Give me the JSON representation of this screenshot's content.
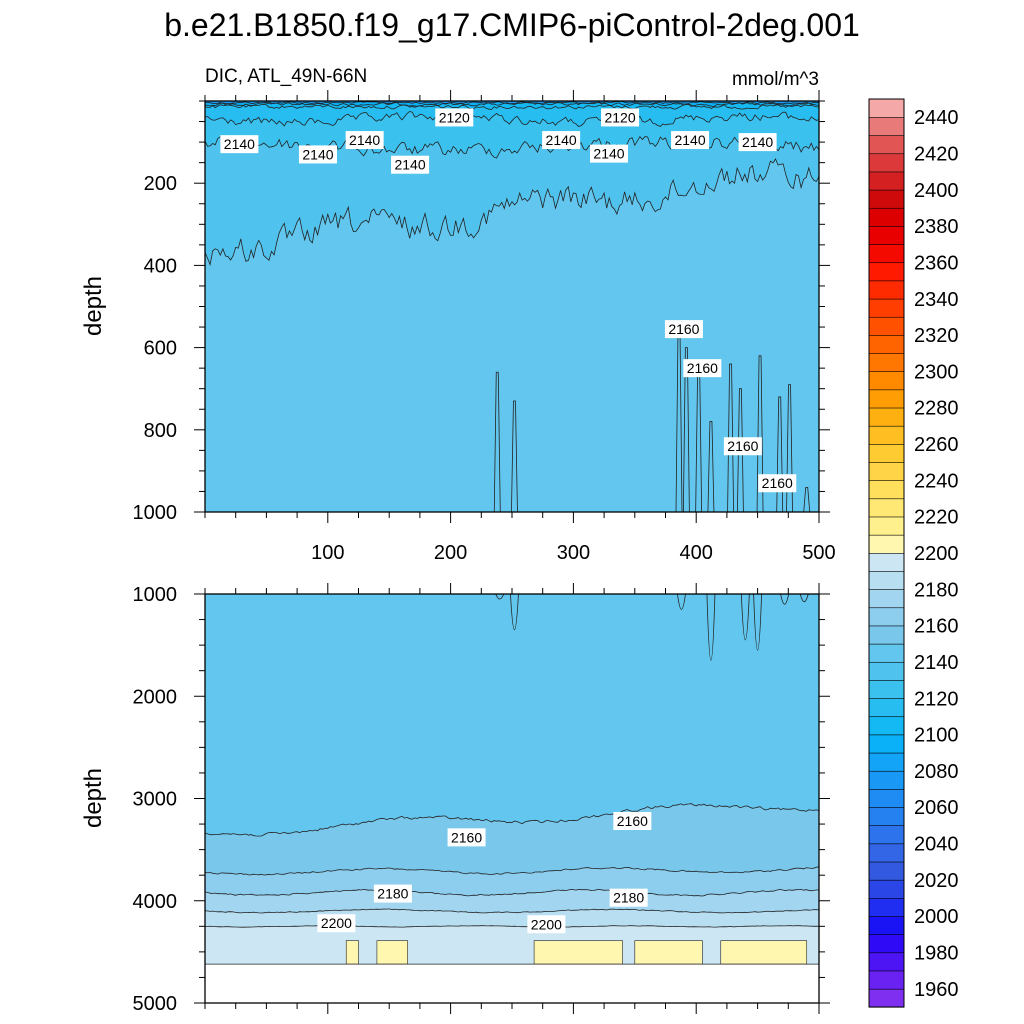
{
  "page": {
    "title": "b.e21.B1850.f19_g17.CMIP6-piControl-2deg.001"
  },
  "chart_data": [
    {
      "type": "heatmap",
      "panel": "upper",
      "left_label": "DIC, ATL_49N-66N",
      "right_label": "mmol/m^3",
      "ylabel": "depth",
      "xlabel": "",
      "xlim": [
        0,
        500
      ],
      "ylim": [
        1000,
        0
      ],
      "y_reversed": true,
      "xticks": [
        100,
        200,
        300,
        400,
        500
      ],
      "yticks": [
        200,
        400,
        600,
        800,
        1000
      ],
      "contour_labels": [
        {
          "text": "2140",
          "x": 28,
          "y": 105
        },
        {
          "text": "2140",
          "x": 92,
          "y": 130
        },
        {
          "text": "2140",
          "x": 130,
          "y": 95
        },
        {
          "text": "2140",
          "x": 167,
          "y": 155
        },
        {
          "text": "2120",
          "x": 203,
          "y": 40
        },
        {
          "text": "2140",
          "x": 290,
          "y": 95
        },
        {
          "text": "2120",
          "x": 338,
          "y": 40
        },
        {
          "text": "2140",
          "x": 329,
          "y": 128
        },
        {
          "text": "2140",
          "x": 395,
          "y": 95
        },
        {
          "text": "2140",
          "x": 450,
          "y": 100
        },
        {
          "text": "2160",
          "x": 390,
          "y": 555
        },
        {
          "text": "2160",
          "x": 405,
          "y": 650
        },
        {
          "text": "2160",
          "x": 438,
          "y": 840
        },
        {
          "text": "2160",
          "x": 466,
          "y": 930
        }
      ]
    },
    {
      "type": "heatmap",
      "panel": "lower",
      "ylabel": "depth",
      "xlabel": "",
      "xlim": [
        0,
        500
      ],
      "ylim": [
        5000,
        1000
      ],
      "y_reversed": true,
      "yticks": [
        1000,
        2000,
        3000,
        4000,
        5000
      ],
      "contour_labels": [
        {
          "text": "2160",
          "x": 213,
          "y": 3380
        },
        {
          "text": "2160",
          "x": 348,
          "y": 3220
        },
        {
          "text": "2180",
          "x": 153,
          "y": 3930
        },
        {
          "text": "2180",
          "x": 345,
          "y": 3970
        },
        {
          "text": "2200",
          "x": 107,
          "y": 4220
        },
        {
          "text": "2200",
          "x": 278,
          "y": 4230
        }
      ]
    },
    {
      "type": "colorbar",
      "levels": [
        1960,
        1970,
        1980,
        1990,
        2000,
        2010,
        2020,
        2030,
        2040,
        2050,
        2060,
        2070,
        2080,
        2090,
        2100,
        2110,
        2120,
        2130,
        2140,
        2150,
        2160,
        2170,
        2180,
        2190,
        2200,
        2210,
        2220,
        2230,
        2240,
        2250,
        2260,
        2270,
        2280,
        2290,
        2300,
        2310,
        2320,
        2330,
        2340,
        2350,
        2360,
        2370,
        2380,
        2390,
        2400,
        2410,
        2420,
        2430,
        2440,
        2450
      ],
      "tick_labels": [
        "1960",
        "1980",
        "2000",
        "2020",
        "2040",
        "2060",
        "2080",
        "2100",
        "2120",
        "2140",
        "2160",
        "2180",
        "2200",
        "2220",
        "2240",
        "2260",
        "2280",
        "2300",
        "2320",
        "2340",
        "2360",
        "2380",
        "2400",
        "2420",
        "2440"
      ],
      "colors": [
        "#7f2ff0",
        "#6a22f2",
        "#4d14f4",
        "#2e0af6",
        "#1a14f5",
        "#1f2ef0",
        "#2b46e6",
        "#3359e0",
        "#3366e6",
        "#2d74ec",
        "#2580f0",
        "#1f8cf3",
        "#1998f5",
        "#13a4f7",
        "#0ab0f8",
        "#14b9f4",
        "#27bdf0",
        "#3bc1ee",
        "#4fc3ee",
        "#63c6ee",
        "#7ac7ec",
        "#8dcdee",
        "#a2d5f0",
        "#b8def2",
        "#cce6f3",
        "#fff6b0",
        "#fff08e",
        "#ffe873",
        "#ffdf5c",
        "#ffd547",
        "#ffcb33",
        "#ffbf22",
        "#ffb011",
        "#ff9d05",
        "#ff8a00",
        "#ff7700",
        "#ff6400",
        "#ff5100",
        "#ff3e00",
        "#ff2b00",
        "#ff1a00",
        "#f50a00",
        "#e80000",
        "#dc0000",
        "#cf0a0a",
        "#d42020",
        "#dc3a3a",
        "#e25555",
        "#e87a7a",
        "#f4a8a8"
      ]
    }
  ]
}
